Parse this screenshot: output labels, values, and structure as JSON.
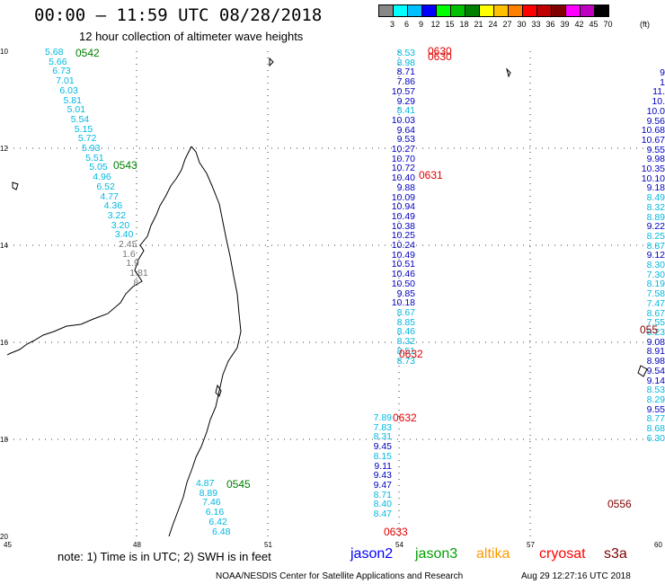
{
  "header": {
    "title": "00:00 – 11:59 UTC 08/28/2018",
    "subtitle": "12 hour collection of altimeter wave heights"
  },
  "scale": {
    "unit_label": "(ft)",
    "labels": [
      "3",
      "6",
      "9",
      "12",
      "15",
      "18",
      "21",
      "24",
      "27",
      "30",
      "33",
      "36",
      "39",
      "42",
      "45",
      "70"
    ],
    "colors": [
      "#888888",
      "#00ffff",
      "#00c0ff",
      "#0000ff",
      "#00ff00",
      "#00c000",
      "#008000",
      "#ffff00",
      "#ffc000",
      "#ff8000",
      "#ff0000",
      "#c00000",
      "#800000",
      "#ff00ff",
      "#c000c0",
      "#000000"
    ]
  },
  "axes": {
    "lat": [
      "10",
      "12",
      "14",
      "16",
      "18",
      "20"
    ],
    "lon": [
      "45",
      "48",
      "51",
      "54",
      "57",
      "60"
    ]
  },
  "tracks": {
    "west": [
      "5.68",
      "5.66",
      "6.73",
      "7.01",
      "6.03",
      "5.81",
      "5.01",
      "5.54",
      "5.15",
      "5.72",
      "5.93",
      "5.51",
      "5.05",
      "4.96",
      "6.52",
      "4.77",
      "4.36",
      "3.22",
      "3.20",
      "3.40",
      "2.45",
      "1.6",
      "1.9",
      "1.81",
      "8"
    ],
    "west_colors": [
      "#00b8e0",
      "#00b8e0",
      "#00b8e0",
      "#00b8e0",
      "#00b8e0",
      "#00b8e0",
      "#00b8e0",
      "#00b8e0",
      "#00b8e0",
      "#00b8e0",
      "#00b8e0",
      "#00b8e0",
      "#00b8e0",
      "#00b8e0",
      "#00b8e0",
      "#00b8e0",
      "#00b8e0",
      "#00b8e0",
      "#00b8e0",
      "#00b8e0",
      "#777777",
      "#777777",
      "#777777",
      "#777777",
      "#777777"
    ],
    "center": [
      "8.53",
      "8.98",
      "8.71",
      "7.86",
      "10.57",
      "9.29",
      "8.41",
      "10.03",
      "9.64",
      "9.53",
      "10.27",
      "10.70",
      "10.72",
      "10.40",
      "9.88",
      "10.09",
      "10.94",
      "10.49",
      "10.38",
      "10.25",
      "10.24",
      "10.49",
      "10.51",
      "10.46",
      "10.50",
      "9.85",
      "10.18",
      "8.67",
      "8.85",
      "8.46",
      "8.32",
      "8.51",
      "8.73"
    ],
    "center_colors": [
      "#00b8e0",
      "#00b8e0",
      "#0000c0",
      "#0000c0",
      "#0000c0",
      "#0000c0",
      "#00b8e0",
      "#0000c0",
      "#0000c0",
      "#0000c0",
      "#0000c0",
      "#0000c0",
      "#0000c0",
      "#0000c0",
      "#0000c0",
      "#0000c0",
      "#0000c0",
      "#0000c0",
      "#0000c0",
      "#0000c0",
      "#0000c0",
      "#0000c0",
      "#0000c0",
      "#0000c0",
      "#0000c0",
      "#0000c0",
      "#0000c0",
      "#00b8e0",
      "#00b8e0",
      "#00b8e0",
      "#00b8e0",
      "#00b8e0",
      "#00b8e0"
    ],
    "center_lower": [
      "7.89",
      "7.83",
      "8.31",
      "9.45",
      "8.15",
      "9.11",
      "9.43",
      "9.47",
      "8.71",
      "8.40",
      "8.47"
    ],
    "center_lower_colors": [
      "#00b8e0",
      "#00b8e0",
      "#00b8e0",
      "#0000c0",
      "#00b8e0",
      "#0000c0",
      "#0000c0",
      "#0000c0",
      "#00b8e0",
      "#00b8e0",
      "#00b8e0"
    ],
    "east_top": [
      "9",
      "1",
      "11.",
      "10.",
      "10.0",
      "9.56",
      "10.68",
      "10.67",
      "9.55",
      "9.98",
      "10.35",
      "10.10",
      "9.18",
      "8.49",
      "8.32",
      "8.89",
      "9.22",
      "8.25",
      "8.87",
      "9.12",
      "8.30",
      "7.30",
      "8.19",
      "7.58",
      "7.47",
      "8.67",
      "7.55",
      "8.23",
      "9.08",
      "8.91",
      "8.98",
      "9.54",
      "9.14",
      "8.53",
      "8.29",
      "9.55",
      "8.77",
      "8.68",
      "6.30"
    ],
    "east_top_colors": [
      "#0000c0",
      "#0000c0",
      "#0000c0",
      "#0000c0",
      "#0000c0",
      "#0000c0",
      "#0000c0",
      "#0000c0",
      "#0000c0",
      "#0000c0",
      "#0000c0",
      "#0000c0",
      "#0000c0",
      "#00b8e0",
      "#00b8e0",
      "#00b8e0",
      "#0000c0",
      "#00b8e0",
      "#00b8e0",
      "#0000c0",
      "#00b8e0",
      "#00b8e0",
      "#00b8e0",
      "#00b8e0",
      "#00b8e0",
      "#00b8e0",
      "#00b8e0",
      "#00b8e0",
      "#0000c0",
      "#0000c0",
      "#0000c0",
      "#0000c0",
      "#0000c0",
      "#00b8e0",
      "#00b8e0",
      "#0000c0",
      "#00b8e0",
      "#00b8e0",
      "#00b8e0"
    ],
    "southwest": [
      "4.87",
      "8.89",
      "7.46",
      "6.16",
      "6.42",
      "6.48"
    ]
  },
  "times": {
    "t0542": "0542",
    "t0543": "0543",
    "t0545": "0545",
    "t0630a": "0630",
    "t0630b": "0630",
    "t0631": "0631",
    "t0632a": "0632",
    "t0632b": "0632",
    "t0633": "0633",
    "t0555": "055",
    "t0556": "0556"
  },
  "footer": {
    "note": "note: 1) Time is in UTC; 2) SWH is in feet",
    "satellites": [
      {
        "name": "jason2",
        "color": "#0000ff"
      },
      {
        "name": "jason3",
        "color": "#00a000"
      },
      {
        "name": "altika",
        "color": "#ff9900"
      },
      {
        "name": "cryosat",
        "color": "#ff0000"
      },
      {
        "name": "s3a",
        "color": "#800000"
      }
    ],
    "credit": "NOAA/NESDIS Center for Satellite Applications and Research",
    "timestamp": "Aug 29 12:27:16 UTC 2018"
  }
}
